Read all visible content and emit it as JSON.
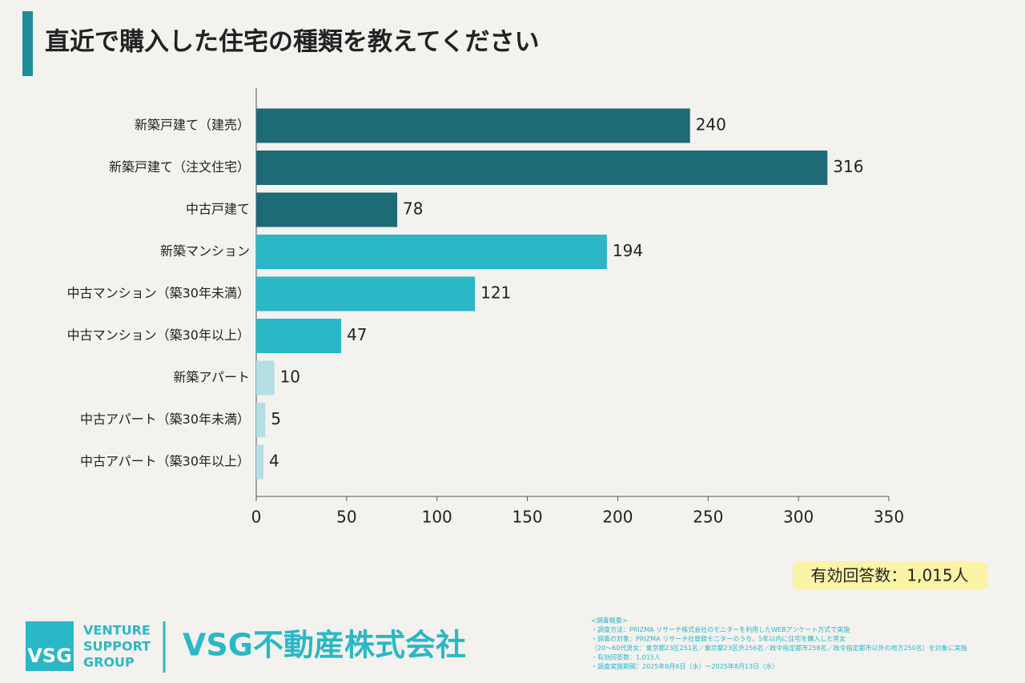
{
  "chart_data": {
    "type": "hbar",
    "title": "直近で購入した住宅の種類を教えてください",
    "categories": [
      "新築戸建て（建売）",
      "新築戸建て（注文住宅）",
      "中古戸建て",
      "新築マンション",
      "中古マンション（築30年未満）",
      "中古マンション（築30年以上）",
      "新築アパート",
      "中古アパート（築30年未満）",
      "中古アパート（築30年以上）"
    ],
    "values": [
      240,
      316,
      78,
      194,
      121,
      47,
      10,
      5,
      4
    ],
    "colors": [
      "#1e6b78",
      "#1e6b78",
      "#1e6b78",
      "#2bb7c6",
      "#2bb7c6",
      "#2bb7c6",
      "#b3dee4",
      "#b3dee4",
      "#b3dee4"
    ],
    "xlim": [
      0,
      350
    ],
    "xticks": [
      0,
      50,
      100,
      150,
      200,
      250,
      300,
      350
    ],
    "note": "有効回答数：1,015人"
  },
  "footer": {
    "logo_mark": "VSG",
    "logo_lines": [
      "VENTURE",
      "SUPPORT",
      "GROUP"
    ],
    "company": "VSG不動産株式会社",
    "survey": [
      "<調査概要>",
      "・調査方法：PRIZMA リサーチ株式会社のモニターを利用したWEBアンケート方式で実施",
      "・調査の対象：PRIZMA リサーチ社登録モニターのうち、5年以内に住宅を購入した男女",
      "（20～60代男女：東京都23区251名／東京都23区外256名／政令指定都市258名／政令指定都市以外の地方250名）を対象に実施",
      "・有効回答数：1,015人",
      "・調査実施期間：2025年8月6日（水）～2025年8月13日（水）"
    ]
  }
}
